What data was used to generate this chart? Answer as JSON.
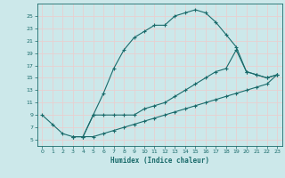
{
  "xlabel": "Humidex (Indice chaleur)",
  "xlim": [
    -0.5,
    23.5
  ],
  "ylim": [
    4,
    27
  ],
  "yticks": [
    5,
    7,
    9,
    11,
    13,
    15,
    17,
    19,
    21,
    23,
    25
  ],
  "xticks": [
    0,
    1,
    2,
    3,
    4,
    5,
    6,
    7,
    8,
    9,
    10,
    11,
    12,
    13,
    14,
    15,
    16,
    17,
    18,
    19,
    20,
    21,
    22,
    23
  ],
  "bg_color": "#cce8ea",
  "grid_color": "#e8d0d0",
  "line_color": "#1a6b6b",
  "curve1_x": [
    0,
    1,
    2,
    3,
    4,
    5,
    6,
    7,
    8,
    9,
    10,
    11,
    12,
    13,
    14,
    15,
    16,
    17,
    18,
    19,
    20,
    21,
    22,
    23
  ],
  "curve1_y": [
    9,
    7.5,
    6,
    5.5,
    5.5,
    9,
    12.5,
    16.5,
    19.5,
    21.5,
    22.5,
    23.5,
    23.5,
    25,
    25.5,
    26,
    25.5,
    24,
    22,
    20,
    16,
    15.5,
    15,
    15.5
  ],
  "curve2_x": [
    3,
    4,
    5,
    6,
    7,
    8,
    9,
    10,
    11,
    12,
    13,
    14,
    15,
    16,
    17,
    18,
    19,
    20,
    21,
    22,
    23
  ],
  "curve2_y": [
    5.5,
    5.5,
    9,
    9,
    9,
    9,
    9,
    10,
    10.5,
    11,
    12,
    13,
    14,
    15,
    16,
    16.5,
    19.5,
    16,
    15.5,
    15,
    15.5
  ],
  "curve3_x": [
    3,
    4,
    5,
    6,
    7,
    8,
    9,
    10,
    11,
    12,
    13,
    14,
    15,
    16,
    17,
    18,
    19,
    20,
    21,
    22,
    23
  ],
  "curve3_y": [
    5.5,
    5.5,
    5.5,
    6,
    6.5,
    7,
    7.5,
    8,
    8.5,
    9,
    9.5,
    10,
    10.5,
    11,
    11.5,
    12,
    12.5,
    13,
    13.5,
    14,
    15.5
  ],
  "marker": "+",
  "markersize": 3.5,
  "linewidth": 0.8
}
